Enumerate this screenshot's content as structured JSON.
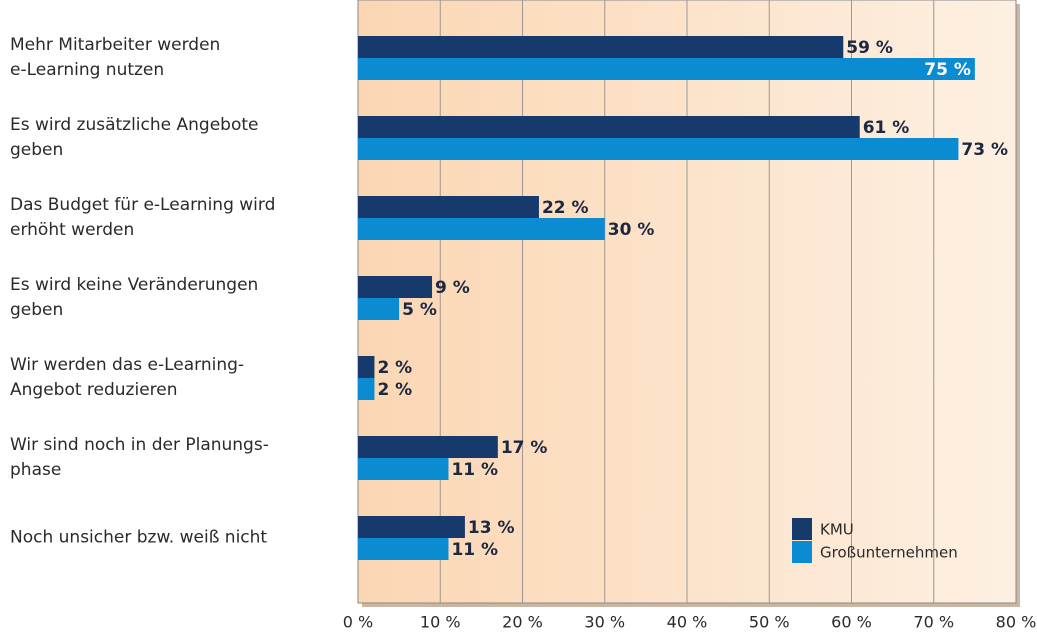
{
  "chart_data": {
    "type": "bar",
    "orientation": "horizontal",
    "categories": [
      "Mehr Mitarbeiter werden\ne-Learning nutzen",
      "Es wird zusätzliche Angebote\ngeben",
      "Das Budget für e-Learning wird\nerhöht werden",
      "Es wird keine Veränderungen\ngeben",
      "Wir werden das e-Learning-\nAngebot reduzieren",
      "Wir sind noch in der Planungs-\nphase",
      "Noch unsicher bzw. weiß nicht"
    ],
    "series": [
      {
        "name": "KMU",
        "color": "#173a6c",
        "values": [
          59,
          61,
          22,
          9,
          2,
          17,
          13
        ],
        "value_labels": [
          "59 %",
          "61 %",
          "22 %",
          "9 %",
          "2 %",
          "17 %",
          "13 %"
        ]
      },
      {
        "name": "Großunternehmen",
        "color": "#0a8bd2",
        "values": [
          75,
          73,
          30,
          5,
          2,
          11,
          11
        ],
        "value_labels": [
          "75 %",
          "73 %",
          "30 %",
          "5 %",
          "2 %",
          "11 %",
          "11 %"
        ]
      }
    ],
    "xlim": [
      0,
      80
    ],
    "xticks": [
      {
        "value": 0,
        "label": "0 %"
      },
      {
        "value": 10,
        "label": "10 %"
      },
      {
        "value": 20,
        "label": "20 %"
      },
      {
        "value": 30,
        "label": "30 %"
      },
      {
        "value": 40,
        "label": "40 %"
      },
      {
        "value": 50,
        "label": "50 %"
      },
      {
        "value": 60,
        "label": "60 %"
      },
      {
        "value": 70,
        "label": "70 %"
      },
      {
        "value": 80,
        "label": "80 %"
      }
    ],
    "grid": true,
    "legend": "lower right"
  }
}
